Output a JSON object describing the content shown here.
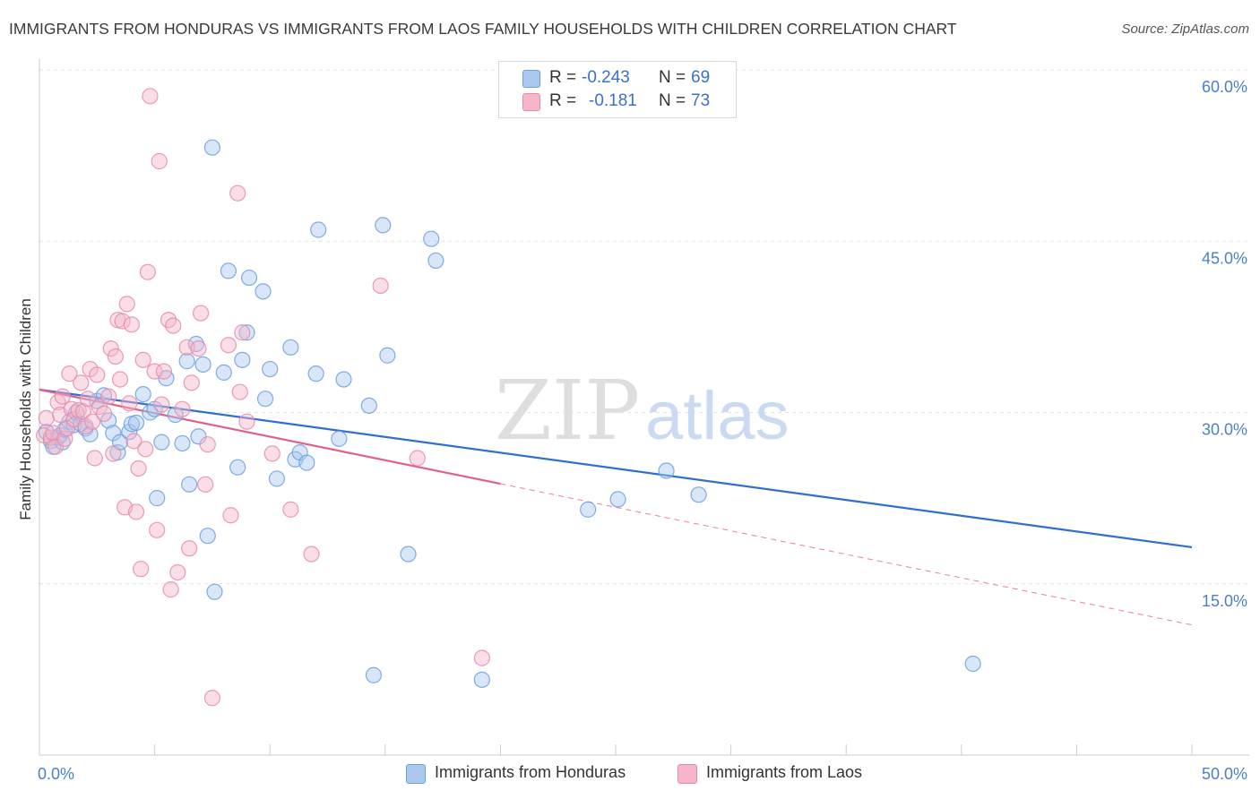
{
  "title": "IMMIGRANTS FROM HONDURAS VS IMMIGRANTS FROM LAOS FAMILY HOUSEHOLDS WITH CHILDREN CORRELATION CHART",
  "source": "Source: ZipAtlas.com",
  "watermark": {
    "zip": "ZIP",
    "atlas": "atlas"
  },
  "legend_top": [
    {
      "r_label": "R =",
      "r_value": "-0.243",
      "n_label": "N =",
      "n_value": "69",
      "color": "#a9c8f0"
    },
    {
      "r_label": "R =",
      "r_value": "-0.181",
      "n_label": "N =",
      "n_value": "73",
      "color": "#f5b6ca"
    }
  ],
  "legend_bottom": [
    {
      "label": "Immigrants from Honduras",
      "color": "#a9c8f0"
    },
    {
      "label": "Immigrants from Laos",
      "color": "#f5b6ca"
    }
  ],
  "colors": {
    "honduras_fill": "#a9c8f0",
    "honduras_stroke": "#6a9fe0",
    "honduras_line": "#2f6fd0",
    "laos_fill": "#f5b6ca",
    "laos_stroke": "#e88aa8",
    "laos_line": "#e0608a",
    "grid": "#e2e2e2",
    "tick_label": "#4a7fcb"
  },
  "chart_data": {
    "type": "scatter",
    "title": "IMMIGRANTS FROM HONDURAS VS IMMIGRANTS FROM LAOS FAMILY HOUSEHOLDS WITH CHILDREN CORRELATION CHART",
    "xlabel": "",
    "ylabel": "Family Households with Children",
    "xlim": [
      0,
      50
    ],
    "ylim": [
      0,
      60
    ],
    "x_ticks": [
      0,
      5,
      10,
      15,
      20,
      25,
      30,
      35,
      40,
      45,
      50
    ],
    "x_tick_labels_shown": {
      "0": "0.0%",
      "50": "50.0%"
    },
    "y_ticks": [
      15,
      30,
      45,
      60
    ],
    "y_tick_labels": [
      "15.0%",
      "30.0%",
      "45.0%",
      "60.0%"
    ],
    "grid": "horizontal dashed",
    "legend_placement": "top-center and bottom",
    "series": [
      {
        "name": "Immigrants from Honduras",
        "r": -0.243,
        "n": 69,
        "trend": {
          "x": [
            0,
            50
          ],
          "y": [
            32.0,
            18.2
          ],
          "dashed_from": null
        },
        "points": [
          [
            0.3,
            28.3
          ],
          [
            0.5,
            27.5
          ],
          [
            0.6,
            27.0
          ],
          [
            0.8,
            27.8
          ],
          [
            0.9,
            28.0
          ],
          [
            1.0,
            27.4
          ],
          [
            1.1,
            28.5
          ],
          [
            1.3,
            29.2
          ],
          [
            1.5,
            28.9
          ],
          [
            1.6,
            30.0
          ],
          [
            1.8,
            29.0
          ],
          [
            2.0,
            28.6
          ],
          [
            2.2,
            28.1
          ],
          [
            2.5,
            31.0
          ],
          [
            2.8,
            31.5
          ],
          [
            3.0,
            29.3
          ],
          [
            3.2,
            28.2
          ],
          [
            3.4,
            26.5
          ],
          [
            3.5,
            27.4
          ],
          [
            3.9,
            28.3
          ],
          [
            4.0,
            29.0
          ],
          [
            4.2,
            29.1
          ],
          [
            4.5,
            31.6
          ],
          [
            4.8,
            30.0
          ],
          [
            5.0,
            30.3
          ],
          [
            5.1,
            22.5
          ],
          [
            5.3,
            27.4
          ],
          [
            5.5,
            33.0
          ],
          [
            5.9,
            29.8
          ],
          [
            6.2,
            27.3
          ],
          [
            6.4,
            34.5
          ],
          [
            6.5,
            23.7
          ],
          [
            6.8,
            36.0
          ],
          [
            6.9,
            27.9
          ],
          [
            7.1,
            34.2
          ],
          [
            7.3,
            19.2
          ],
          [
            7.5,
            53.2
          ],
          [
            7.6,
            14.3
          ],
          [
            8.0,
            33.5
          ],
          [
            8.2,
            42.4
          ],
          [
            8.6,
            25.2
          ],
          [
            8.8,
            34.6
          ],
          [
            9.0,
            37.0
          ],
          [
            9.1,
            41.8
          ],
          [
            9.7,
            40.6
          ],
          [
            9.8,
            31.2
          ],
          [
            10.0,
            33.8
          ],
          [
            10.3,
            24.2
          ],
          [
            10.9,
            35.7
          ],
          [
            11.1,
            25.9
          ],
          [
            11.3,
            26.5
          ],
          [
            11.6,
            25.6
          ],
          [
            12.0,
            33.4
          ],
          [
            12.1,
            46.0
          ],
          [
            13.0,
            27.7
          ],
          [
            13.2,
            32.9
          ],
          [
            14.3,
            30.6
          ],
          [
            14.5,
            7.0
          ],
          [
            14.9,
            46.4
          ],
          [
            15.1,
            35.0
          ],
          [
            16.0,
            17.6
          ],
          [
            17.0,
            45.2
          ],
          [
            17.2,
            43.3
          ],
          [
            19.2,
            6.6
          ],
          [
            23.8,
            21.5
          ],
          [
            25.1,
            22.4
          ],
          [
            27.2,
            24.9
          ],
          [
            28.6,
            22.8
          ],
          [
            40.5,
            8.0
          ]
        ]
      },
      {
        "name": "Immigrants from Laos",
        "r": -0.181,
        "n": 73,
        "trend": {
          "x": [
            0,
            50
          ],
          "y": [
            32.0,
            11.4
          ],
          "dashed_from": 20
        },
        "points": [
          [
            0.2,
            28.0
          ],
          [
            0.3,
            29.5
          ],
          [
            0.5,
            27.8
          ],
          [
            0.6,
            28.2
          ],
          [
            0.7,
            27.0
          ],
          [
            0.8,
            30.9
          ],
          [
            0.9,
            29.8
          ],
          [
            1.0,
            31.4
          ],
          [
            1.1,
            27.7
          ],
          [
            1.2,
            28.6
          ],
          [
            1.3,
            33.4
          ],
          [
            1.4,
            30.3
          ],
          [
            1.5,
            29.4
          ],
          [
            1.7,
            30.2
          ],
          [
            1.8,
            32.6
          ],
          [
            1.9,
            30.1
          ],
          [
            2.0,
            28.8
          ],
          [
            2.1,
            31.2
          ],
          [
            2.2,
            33.8
          ],
          [
            2.3,
            29.2
          ],
          [
            2.4,
            26.0
          ],
          [
            2.5,
            33.3
          ],
          [
            2.6,
            30.5
          ],
          [
            2.8,
            29.9
          ],
          [
            3.0,
            31.4
          ],
          [
            3.1,
            35.6
          ],
          [
            3.2,
            26.4
          ],
          [
            3.3,
            34.9
          ],
          [
            3.4,
            38.1
          ],
          [
            3.5,
            32.9
          ],
          [
            3.6,
            38.0
          ],
          [
            3.7,
            21.7
          ],
          [
            3.8,
            39.5
          ],
          [
            3.9,
            30.8
          ],
          [
            4.0,
            37.7
          ],
          [
            4.1,
            27.5
          ],
          [
            4.2,
            21.3
          ],
          [
            4.3,
            25.1
          ],
          [
            4.4,
            16.3
          ],
          [
            4.5,
            34.6
          ],
          [
            4.6,
            26.8
          ],
          [
            4.7,
            42.3
          ],
          [
            4.8,
            57.7
          ],
          [
            5.0,
            33.6
          ],
          [
            5.1,
            19.7
          ],
          [
            5.2,
            52.0
          ],
          [
            5.4,
            33.6
          ],
          [
            5.6,
            38.1
          ],
          [
            5.7,
            14.5
          ],
          [
            5.8,
            37.6
          ],
          [
            6.0,
            16.0
          ],
          [
            6.2,
            30.3
          ],
          [
            6.4,
            35.7
          ],
          [
            6.5,
            18.1
          ],
          [
            6.6,
            32.6
          ],
          [
            6.9,
            35.6
          ],
          [
            7.0,
            38.7
          ],
          [
            7.2,
            23.7
          ],
          [
            7.3,
            27.2
          ],
          [
            7.5,
            5.0
          ],
          [
            8.2,
            35.9
          ],
          [
            8.3,
            21.0
          ],
          [
            8.6,
            49.2
          ],
          [
            8.7,
            31.8
          ],
          [
            8.8,
            37.0
          ],
          [
            9.0,
            29.2
          ],
          [
            10.1,
            26.4
          ],
          [
            10.9,
            21.5
          ],
          [
            11.8,
            17.6
          ],
          [
            14.8,
            41.1
          ],
          [
            16.4,
            26.0
          ],
          [
            19.2,
            8.5
          ],
          [
            5.3,
            30.7
          ]
        ]
      }
    ]
  }
}
